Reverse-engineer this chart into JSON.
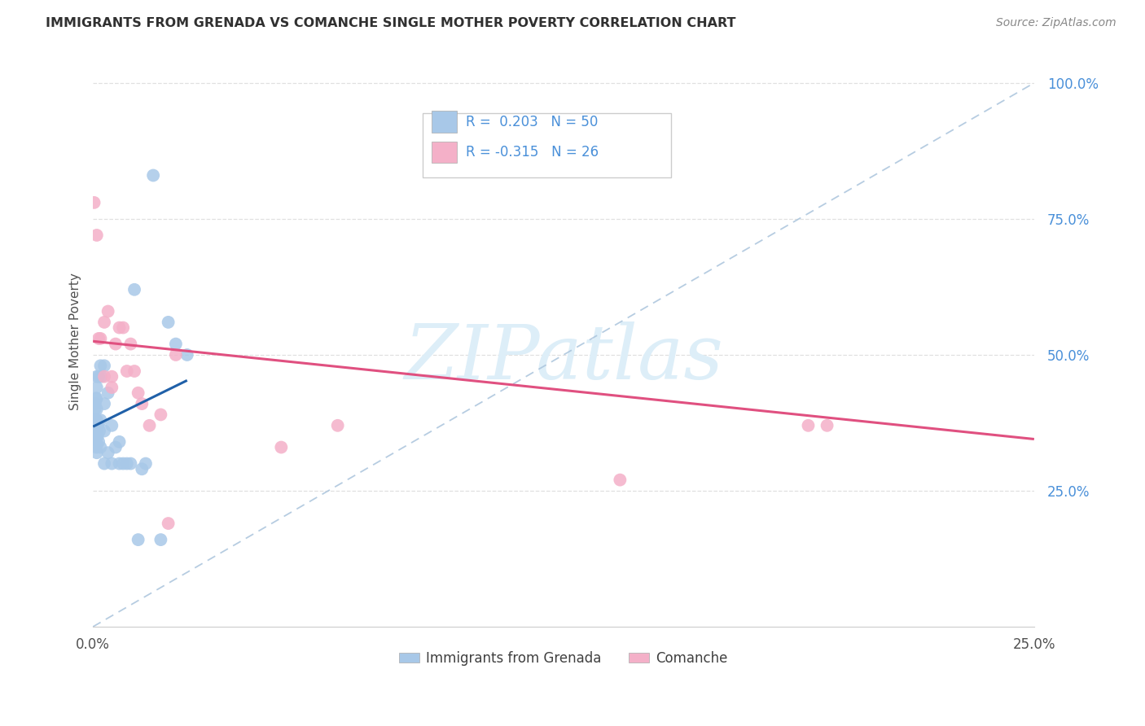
{
  "title": "IMMIGRANTS FROM GRENADA VS COMANCHE SINGLE MOTHER POVERTY CORRELATION CHART",
  "source": "Source: ZipAtlas.com",
  "ylabel": "Single Mother Poverty",
  "ytick_labels": [
    "25.0%",
    "50.0%",
    "75.0%",
    "100.0%"
  ],
  "ytick_values": [
    0.25,
    0.5,
    0.75,
    1.0
  ],
  "xtick_labels": [
    "0.0%",
    "25.0%"
  ],
  "xtick_values": [
    0.0,
    0.25
  ],
  "xlim": [
    0.0,
    0.25
  ],
  "ylim": [
    0.0,
    1.05
  ],
  "legend_label1": "Immigrants from Grenada",
  "legend_label2": "Comanche",
  "R1": "0.203",
  "N1": "50",
  "R2": "-0.315",
  "N2": "26",
  "blue_scatter_color": "#a8c8e8",
  "blue_line_color": "#2060a8",
  "pink_scatter_color": "#f4b0c8",
  "pink_line_color": "#e05080",
  "dash_color": "#aac4dc",
  "watermark_color": "#ddeef8",
  "bg_color": "#ffffff",
  "grid_color": "#e0e0e0",
  "title_color": "#303030",
  "axis_label_color": "#505050",
  "right_tick_color": "#4a90d9",
  "source_color": "#888888",
  "blue_x": [
    0.0003,
    0.0004,
    0.0005,
    0.0005,
    0.0006,
    0.0006,
    0.0007,
    0.0007,
    0.0008,
    0.0008,
    0.0009,
    0.001,
    0.001,
    0.001,
    0.001,
    0.001,
    0.001,
    0.001,
    0.0012,
    0.0013,
    0.0015,
    0.0015,
    0.0017,
    0.002,
    0.002,
    0.002,
    0.0022,
    0.003,
    0.003,
    0.003,
    0.003,
    0.004,
    0.004,
    0.005,
    0.005,
    0.006,
    0.007,
    0.007,
    0.008,
    0.009,
    0.01,
    0.011,
    0.012,
    0.013,
    0.014,
    0.016,
    0.018,
    0.02,
    0.022,
    0.025
  ],
  "blue_y": [
    0.38,
    0.37,
    0.36,
    0.4,
    0.35,
    0.41,
    0.36,
    0.42,
    0.34,
    0.38,
    0.33,
    0.36,
    0.38,
    0.4,
    0.42,
    0.44,
    0.46,
    0.32,
    0.35,
    0.37,
    0.34,
    0.46,
    0.36,
    0.33,
    0.38,
    0.48,
    0.46,
    0.3,
    0.36,
    0.41,
    0.48,
    0.32,
    0.43,
    0.3,
    0.37,
    0.33,
    0.3,
    0.34,
    0.3,
    0.3,
    0.3,
    0.62,
    0.16,
    0.29,
    0.3,
    0.83,
    0.16,
    0.56,
    0.52,
    0.5
  ],
  "pink_x": [
    0.0003,
    0.001,
    0.0015,
    0.002,
    0.003,
    0.003,
    0.004,
    0.005,
    0.005,
    0.006,
    0.007,
    0.008,
    0.009,
    0.01,
    0.011,
    0.012,
    0.013,
    0.015,
    0.018,
    0.02,
    0.022,
    0.05,
    0.065,
    0.14,
    0.19,
    0.195
  ],
  "pink_y": [
    0.78,
    0.72,
    0.53,
    0.53,
    0.56,
    0.46,
    0.58,
    0.46,
    0.44,
    0.52,
    0.55,
    0.55,
    0.47,
    0.52,
    0.47,
    0.43,
    0.41,
    0.37,
    0.39,
    0.19,
    0.5,
    0.33,
    0.37,
    0.27,
    0.37,
    0.37
  ],
  "blue_line_x": [
    0.0,
    0.025
  ],
  "blue_line_y": [
    0.368,
    0.453
  ],
  "pink_line_x": [
    0.0,
    0.25
  ],
  "pink_line_y": [
    0.525,
    0.345
  ]
}
